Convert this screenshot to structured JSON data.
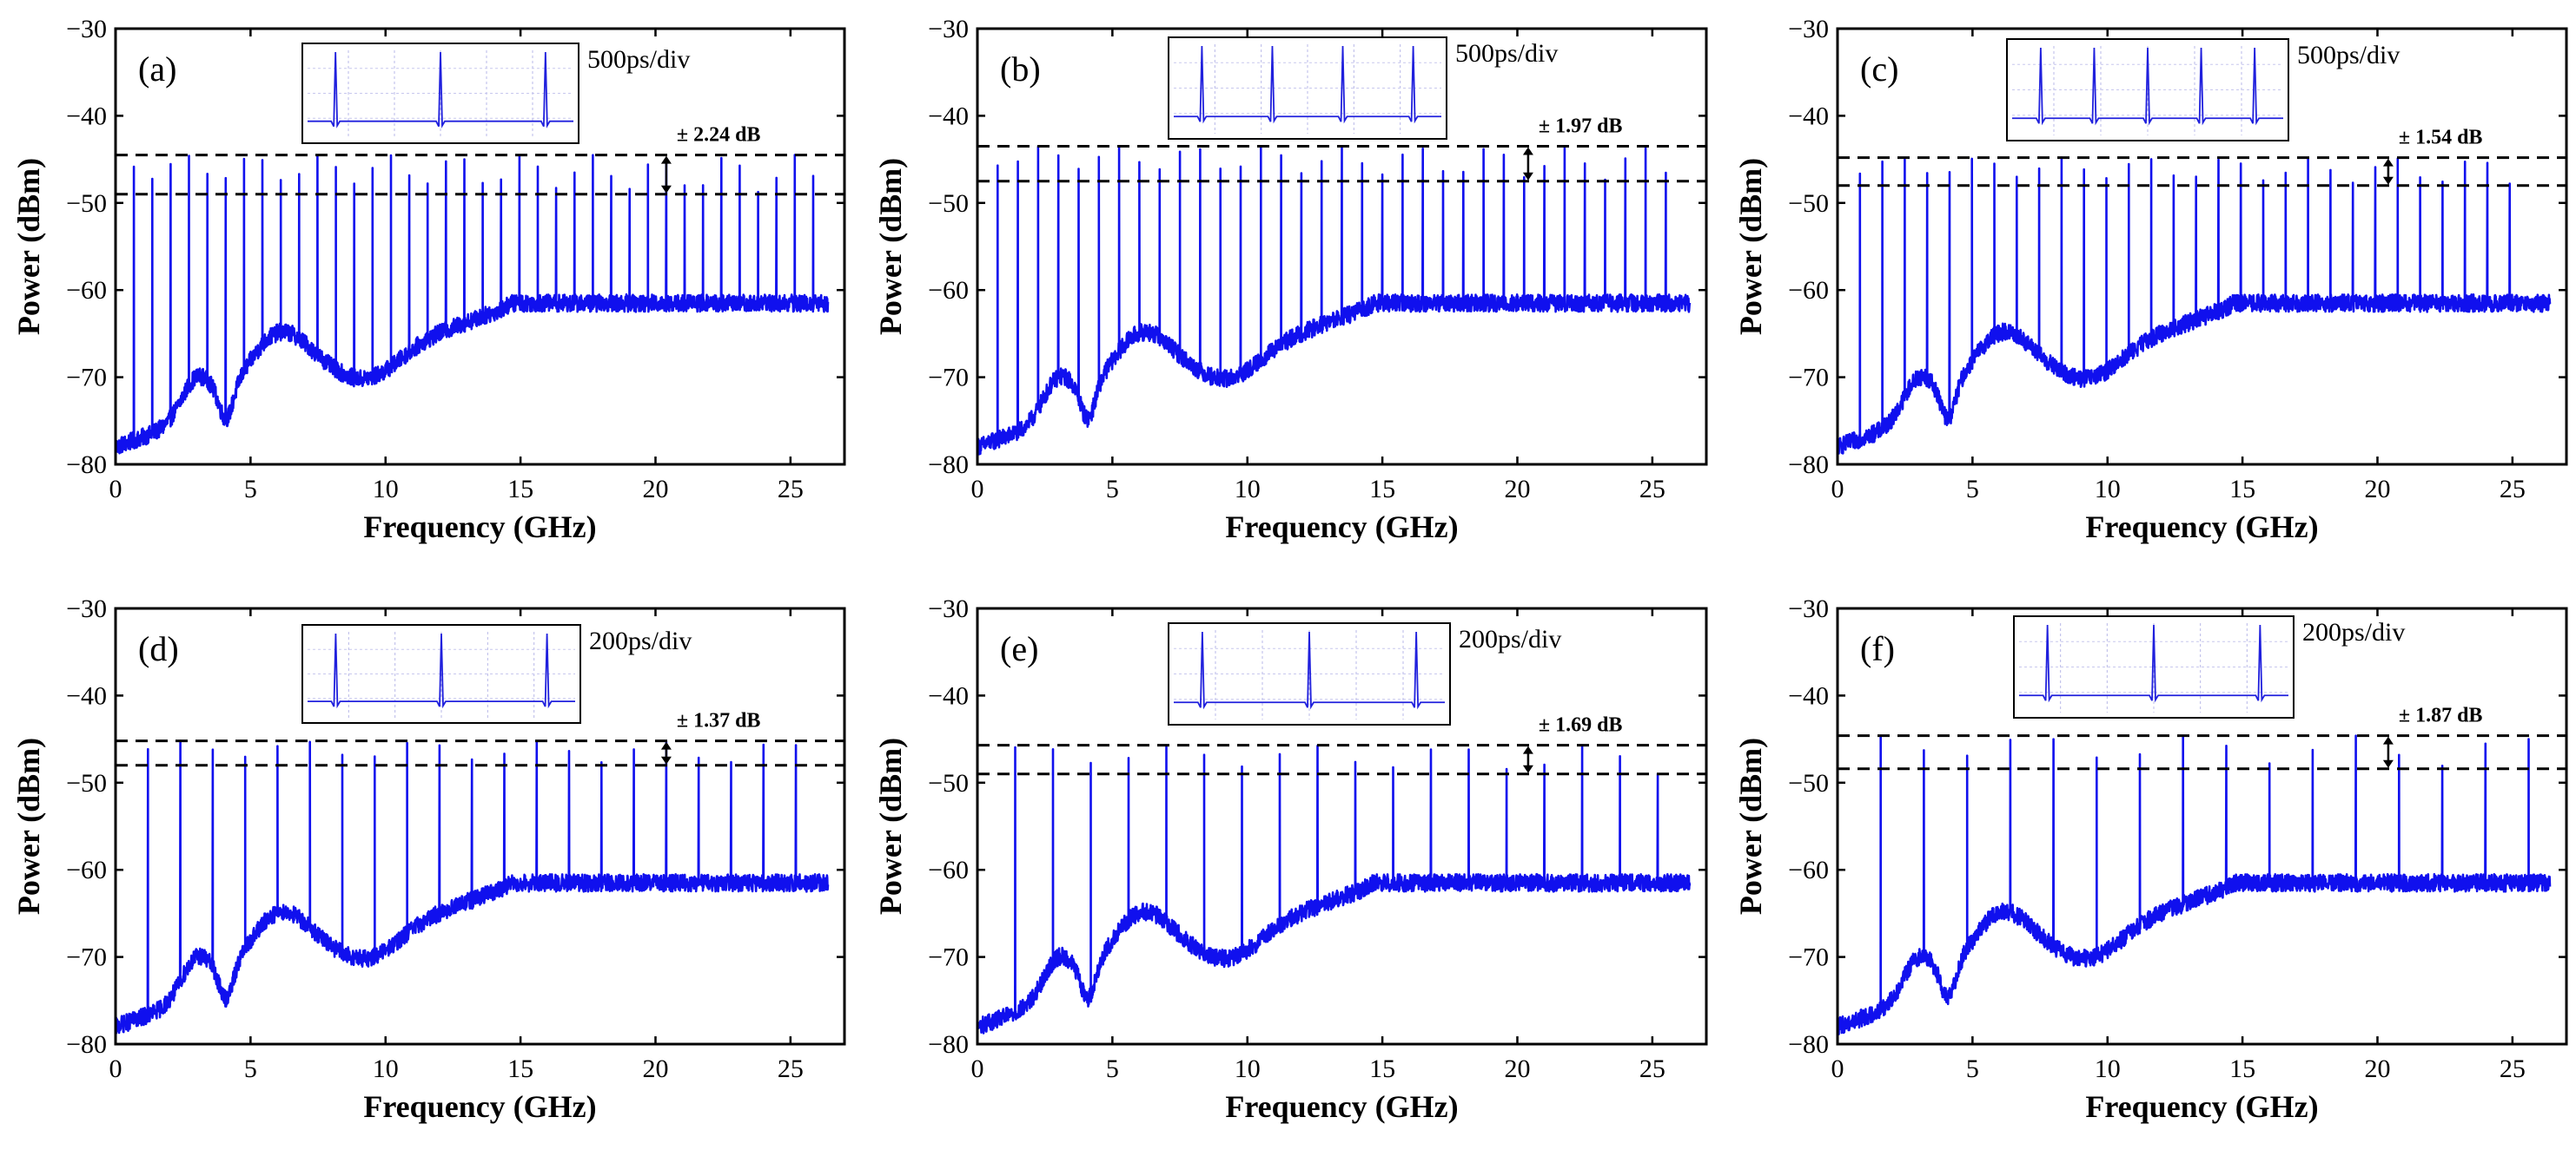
{
  "chart_data": [
    {
      "panel": "(a)",
      "type": "line",
      "ylabel": "Power (dBm)",
      "xlabel": "Frequency (GHz)",
      "xlim": [
        0,
        27
      ],
      "ylim": [
        -80,
        -30
      ],
      "xticks": [
        "0",
        "5",
        "10",
        "15",
        "20",
        "25"
      ],
      "yticks": [
        "−30",
        "−40",
        "−50",
        "−60",
        "−70",
        "−80"
      ],
      "comb_spacing_GHz": 0.68,
      "comb_start_GHz": 0.68,
      "peak_count": 38,
      "upper_level_dBm": -44.5,
      "lower_level_dBm": -49.0,
      "flatness_label": "± 2.24 dB",
      "timebase_label": "500ps/div",
      "inset_pulses": 3,
      "series": [
        {
          "name": "RF spectrum",
          "color": "#1010ee"
        }
      ]
    },
    {
      "panel": "(b)",
      "type": "line",
      "ylabel": "Power (dBm)",
      "xlabel": "Frequency (GHz)",
      "xlim": [
        0,
        27
      ],
      "ylim": [
        -80,
        -30
      ],
      "xticks": [
        "0",
        "5",
        "10",
        "15",
        "20",
        "25"
      ],
      "yticks": [
        "−30",
        "−40",
        "−50",
        "−60",
        "−70",
        "−80"
      ],
      "comb_spacing_GHz": 0.75,
      "comb_start_GHz": 0.75,
      "peak_count": 34,
      "upper_level_dBm": -43.5,
      "lower_level_dBm": -47.5,
      "flatness_label": "± 1.97 dB",
      "timebase_label": "500ps/div",
      "inset_pulses": 4,
      "series": [
        {
          "name": "RF spectrum",
          "color": "#1010ee"
        }
      ]
    },
    {
      "panel": "(c)",
      "type": "line",
      "ylabel": "Power (dBm)",
      "xlabel": "Frequency (GHz)",
      "xlim": [
        0,
        27
      ],
      "ylim": [
        -80,
        -30
      ],
      "xticks": [
        "0",
        "5",
        "10",
        "15",
        "20",
        "25"
      ],
      "yticks": [
        "−30",
        "−40",
        "−50",
        "−60",
        "−70",
        "−80"
      ],
      "comb_spacing_GHz": 0.83,
      "comb_start_GHz": 0.83,
      "peak_count": 30,
      "upper_level_dBm": -44.8,
      "lower_level_dBm": -48.0,
      "flatness_label": "± 1.54 dB",
      "timebase_label": "500ps/div",
      "inset_pulses": 5,
      "series": [
        {
          "name": "RF spectrum",
          "color": "#1010ee"
        }
      ]
    },
    {
      "panel": "(d)",
      "type": "line",
      "ylabel": "Power (dBm)",
      "xlabel": "Frequency (GHz)",
      "xlim": [
        0,
        27
      ],
      "ylim": [
        -80,
        -30
      ],
      "xticks": [
        "0",
        "5",
        "10",
        "15",
        "20",
        "25"
      ],
      "yticks": [
        "−30",
        "−40",
        "−50",
        "−60",
        "−70",
        "−80"
      ],
      "comb_spacing_GHz": 1.2,
      "comb_start_GHz": 1.2,
      "peak_count": 21,
      "upper_level_dBm": -45.2,
      "lower_level_dBm": -48.0,
      "flatness_label": "± 1.37 dB",
      "timebase_label": "200ps/div",
      "inset_pulses": 3,
      "series": [
        {
          "name": "RF spectrum",
          "color": "#1010ee"
        }
      ]
    },
    {
      "panel": "(e)",
      "type": "line",
      "ylabel": "Power (dBm)",
      "xlabel": "Frequency (GHz)",
      "xlim": [
        0,
        27
      ],
      "ylim": [
        -80,
        -30
      ],
      "xticks": [
        "0",
        "5",
        "10",
        "15",
        "20",
        "25"
      ],
      "yticks": [
        "−30",
        "−40",
        "−50",
        "−60",
        "−70",
        "−80"
      ],
      "comb_spacing_GHz": 1.4,
      "comb_start_GHz": 1.4,
      "peak_count": 18,
      "upper_level_dBm": -45.7,
      "lower_level_dBm": -49.0,
      "flatness_label": "± 1.69 dB",
      "timebase_label": "200ps/div",
      "inset_pulses": 3,
      "series": [
        {
          "name": "RF spectrum",
          "color": "#1010ee"
        }
      ]
    },
    {
      "panel": "(f)",
      "type": "line",
      "ylabel": "Power (dBm)",
      "xlabel": "Frequency (GHz)",
      "xlim": [
        0,
        27
      ],
      "ylim": [
        -80,
        -30
      ],
      "xticks": [
        "0",
        "5",
        "10",
        "15",
        "20",
        "25"
      ],
      "yticks": [
        "−30",
        "−40",
        "−50",
        "−60",
        "−70",
        "−80"
      ],
      "comb_spacing_GHz": 1.6,
      "comb_start_GHz": 1.6,
      "peak_count": 16,
      "upper_level_dBm": -44.6,
      "lower_level_dBm": -48.4,
      "flatness_label": "± 1.87 dB",
      "timebase_label": "200ps/div",
      "inset_pulses": 3,
      "series": [
        {
          "name": "RF spectrum",
          "color": "#1010ee"
        }
      ]
    }
  ]
}
